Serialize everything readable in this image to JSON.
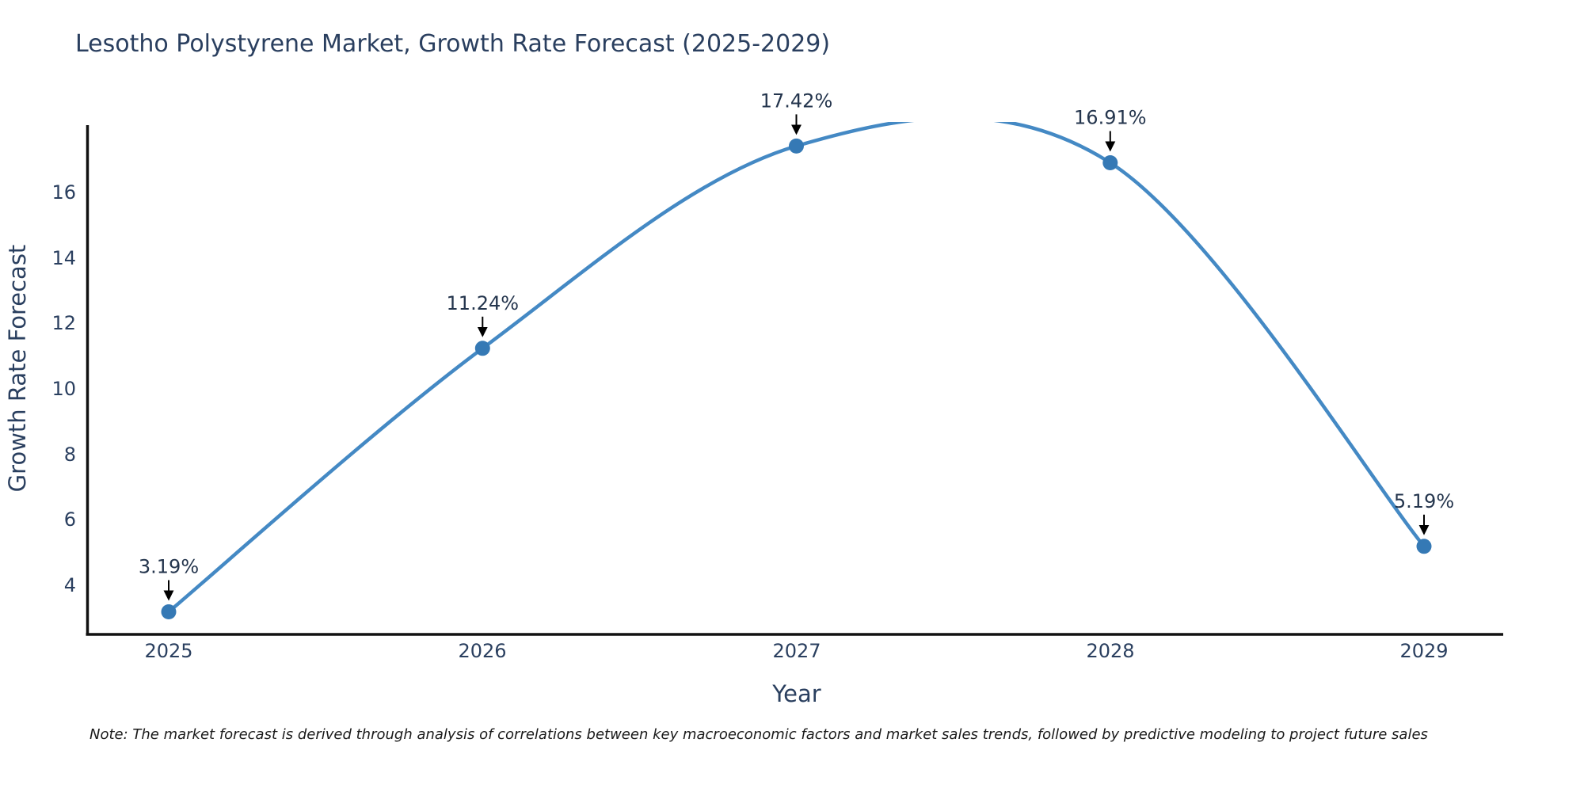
{
  "title": "Lesotho Polystyrene Market, Growth Rate Forecast (2025-2029)",
  "note": "Note: The market forecast is derived through analysis of correlations between key macroeconomic factors and market sales trends, followed by predictive modeling to project future sales",
  "colors": {
    "line": "#4489c4",
    "marker": "#3579b5",
    "text": "#2a3f5f",
    "axis": "#111111",
    "arrow": "#000000",
    "background": "#ffffff"
  },
  "chart_data": {
    "type": "line",
    "curve": "spline",
    "title": "Lesotho Polystyrene Market, Growth Rate Forecast (2025-2029)",
    "xlabel": "Year",
    "ylabel": "Growth Rate Forecast",
    "x": [
      2025,
      2026,
      2027,
      2028,
      2029
    ],
    "values": [
      3.19,
      11.24,
      17.42,
      16.91,
      5.19
    ],
    "point_labels": [
      "3.19%",
      "11.24%",
      "17.42%",
      "16.91%",
      "5.19%"
    ],
    "x_tick_labels": [
      "2025",
      "2026",
      "2027",
      "2028",
      "2029"
    ],
    "y_ticks": [
      4,
      6,
      8,
      10,
      12,
      14,
      16
    ],
    "ylim": [
      2.5,
      18.0
    ],
    "grid": false,
    "legend": "none",
    "annotations": "black arrow pointing down to each data point with percentage label above"
  }
}
